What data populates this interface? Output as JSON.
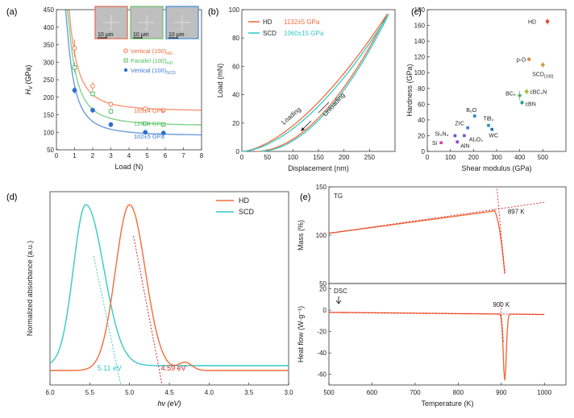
{
  "colors": {
    "hd": "#f26b3a",
    "scd": "#35c9c9",
    "green": "#4fbf5a",
    "blue": "#2f6fd0",
    "vert_hd_text": "#f26b3a",
    "par_text": "#4fbf5a",
    "vert_scd_text": "#3a7ad6"
  },
  "chart_data": [
    {
      "panel": "(a)",
      "type": "scatter",
      "title": "",
      "xlabel": "Load (N)",
      "ylabel": "Hv (GPa)",
      "ylabel_italic_part": "H",
      "ylabel_sub": "V",
      "ylabel_rest": " (GPa)",
      "xlim": [
        0,
        8
      ],
      "ylim": [
        50,
        450
      ],
      "xticks": [
        0,
        1,
        2,
        3,
        4,
        5,
        6,
        7,
        8
      ],
      "yticks": [
        50,
        100,
        150,
        200,
        250,
        300,
        350,
        400,
        450
      ],
      "series": [
        {
          "name": "Vertical (100)",
          "sub": "HD",
          "marker": "circle-open",
          "color_key": "hd",
          "x": [
            1,
            2,
            3,
            4.9,
            5.9
          ],
          "y": [
            340,
            232,
            180,
            167,
            163
          ],
          "err": [
            25,
            12,
            8,
            5,
            5
          ],
          "fit_asymptote": 160,
          "fit_a": 220
        },
        {
          "name": "Parallel (100)",
          "sub": "HD",
          "marker": "square-open",
          "color_key": "green",
          "x": [
            1,
            2,
            3,
            4.9,
            5.9
          ],
          "y": [
            285,
            210,
            160,
            125,
            122
          ],
          "err": [
            15,
            10,
            8,
            5,
            5
          ],
          "fit_asymptote": 118,
          "fit_a": 220
        },
        {
          "name": "Vertical (100)",
          "sub": "SCD",
          "marker": "circle-filled",
          "color_key": "blue",
          "x": [
            1,
            2,
            3,
            4.9,
            5.9
          ],
          "y": [
            220,
            163,
            122,
            100,
            98
          ],
          "err": [
            10,
            8,
            7,
            4,
            4
          ],
          "fit_asymptote": 90,
          "fit_a": 190
        }
      ],
      "annotations": [
        "165±4 GPa",
        "124±4 GPa",
        "102±5 GPa"
      ],
      "inset_scale_labels": [
        "10 μm",
        "10 μm",
        "10 μm"
      ]
    },
    {
      "panel": "(b)",
      "type": "line",
      "xlabel": "Displacement (nm)",
      "ylabel": "Load (mN)",
      "xlim": [
        0,
        300
      ],
      "ylim": [
        0,
        100
      ],
      "xticks": [
        0,
        50,
        100,
        150,
        200,
        250
      ],
      "yticks": [
        0,
        20,
        40,
        60,
        80,
        100
      ],
      "series": [
        {
          "name": "HD",
          "color_key": "hd",
          "value_label": "1132±5  GPa",
          "max_x": 285,
          "max_y": 97,
          "k": 1.6
        },
        {
          "name": "SCD",
          "color_key": "scd",
          "value_label": "1060±15 GPa",
          "max_x": 288,
          "max_y": 97,
          "k": 1.7
        }
      ],
      "annotations": [
        "Loading",
        "Unloading"
      ]
    },
    {
      "panel": "(c)",
      "type": "scatter",
      "xlabel": "Shear modulus (GPa)",
      "ylabel": "Hardness (GPa)",
      "xlim": [
        0,
        600
      ],
      "ylim": [
        0,
        180
      ],
      "xticks": [
        0,
        100,
        200,
        300,
        400,
        500
      ],
      "yticks": [
        0,
        20,
        40,
        60,
        80,
        100,
        120,
        140,
        160,
        180
      ],
      "points": [
        {
          "label": "HD",
          "x": 520,
          "y": 165,
          "color": "#e23b2c",
          "xerr": 8,
          "yerr": 4
        },
        {
          "label": "p-D",
          "x": 440,
          "y": 117,
          "color": "#d98a2b",
          "xerr": 8,
          "yerr": 3
        },
        {
          "label": "SCD",
          "sub": "(100)",
          "x": 500,
          "y": 110,
          "color": "#c89a44",
          "xerr": 10,
          "yerr": 4
        },
        {
          "label": "cBC₂N",
          "x": 430,
          "y": 76,
          "color": "#9fbe3a",
          "xerr": 10,
          "yerr": 4
        },
        {
          "label": "BC₅",
          "x": 400,
          "y": 71,
          "color": "#5ab56a",
          "xerr": 10,
          "yerr": 6
        },
        {
          "label": "cBN",
          "x": 410,
          "y": 62,
          "color": "#23a28a",
          "xerr": 8,
          "yerr": 3
        },
        {
          "label": "B₆O",
          "x": 205,
          "y": 45,
          "color": "#2f88c9",
          "xerr": 8,
          "yerr": 2
        },
        {
          "label": "TiB₂",
          "x": 265,
          "y": 33,
          "color": "#1e93c8",
          "xerr": 6,
          "yerr": 2
        },
        {
          "label": "WC",
          "x": 280,
          "y": 28,
          "color": "#1f6fb0",
          "xerr": 6,
          "yerr": 2
        },
        {
          "label": "ZrC",
          "x": 175,
          "y": 30,
          "color": "#3a7ad6",
          "xerr": 6,
          "yerr": 2
        },
        {
          "label": "Si₃N₄",
          "x": 120,
          "y": 20,
          "color": "#5a5ad0",
          "xerr": 6,
          "yerr": 2
        },
        {
          "label": "Al₂O₃",
          "x": 160,
          "y": 20,
          "color": "#7a4fd0",
          "xerr": 6,
          "yerr": 2
        },
        {
          "label": "AlN",
          "x": 130,
          "y": 12,
          "color": "#9a3fc0",
          "xerr": 5,
          "yerr": 2
        },
        {
          "label": "Si",
          "x": 60,
          "y": 11,
          "color": "#c83fb8",
          "xerr": 4,
          "yerr": 1
        }
      ]
    },
    {
      "panel": "(d)",
      "type": "line",
      "xlabel": "hv (eV)",
      "ylabel": "Normalized absorbance (a.u.)",
      "xlim": [
        6.0,
        3.0
      ],
      "xticks": [
        6.0,
        5.5,
        5.0,
        4.5,
        4.0,
        3.5,
        3.0
      ],
      "series": [
        {
          "name": "HD",
          "color_key": "hd",
          "peak_x": 5.0,
          "edge_label": "4.59 eV",
          "edge_x": 4.59
        },
        {
          "name": "SCD",
          "color_key": "scd",
          "peak_x": 5.55,
          "edge_label": "5.11 eV",
          "edge_x": 5.11
        }
      ]
    },
    {
      "panel": "(e)",
      "type": "line",
      "xlabel": "Temperature (K)",
      "xlim": [
        500,
        1050
      ],
      "xticks": [
        500,
        600,
        700,
        800,
        900,
        1000
      ],
      "top": {
        "ylabel": "Mass (%)",
        "ylim": [
          50,
          150
        ],
        "yticks": [
          50,
          100,
          150
        ],
        "tag": "TG",
        "annotation": "897 K"
      },
      "bottom": {
        "ylabel": "Heat flow (W·g⁻¹)",
        "ylim": [
          -70,
          25
        ],
        "yticks": [
          -60,
          -40,
          -20,
          0,
          20
        ],
        "tag": "DSC",
        "annotation": "900 K"
      }
    }
  ],
  "labels": {
    "a": "(a)",
    "b": "(b)",
    "c": "(c)",
    "d": "(d)",
    "e": "(e)"
  }
}
